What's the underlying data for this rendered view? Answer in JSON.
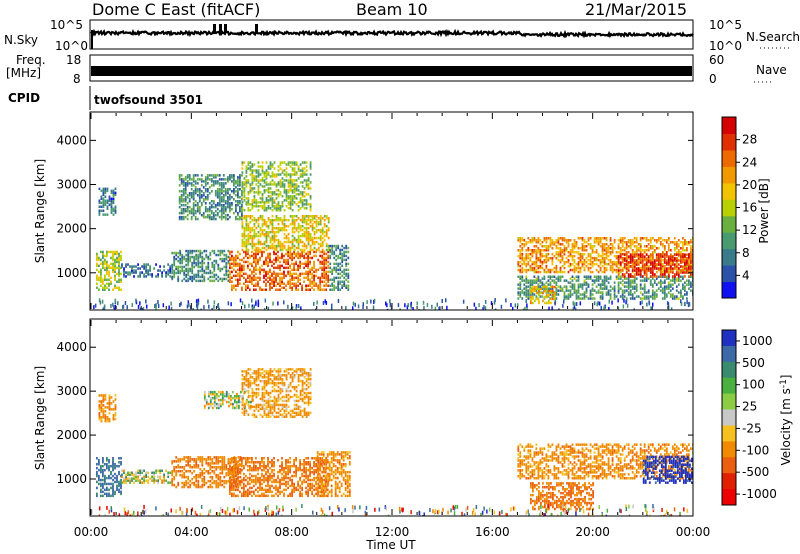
{
  "header": {
    "radar": "Dome C East (fitACF)",
    "beam": "Beam 10",
    "date": "21/Mar/2015"
  },
  "top_panels": {
    "nsky_label": "N.Sky",
    "nsky_ticks": [
      "10^5",
      "10^0"
    ],
    "nsearch_label": "N.Search",
    "nsearch_ticks": [
      "10^5",
      "10^0"
    ],
    "freq_label_1": "Freq.",
    "freq_label_2": "[MHz]",
    "freq_ticks": [
      "18",
      "8"
    ],
    "nave_label": "Nave",
    "nave_ticks": [
      "60",
      "0"
    ],
    "cpid_label": "CPID",
    "cpid_value": "twofsound 3501"
  },
  "colors": {
    "power": [
      "#1010f0",
      "#2a52a8",
      "#3a7a8a",
      "#4a9a70",
      "#6ab040",
      "#b8d000",
      "#f2c300",
      "#f09a00",
      "#ec6a00",
      "#e03000",
      "#d40000"
    ],
    "velocity": [
      "#2030c0",
      "#3c6aa6",
      "#3a8a70",
      "#4ab040",
      "#8ccc44",
      "#c8c8c8",
      "#f5c020",
      "#f08a00",
      "#ea6010",
      "#e02000",
      "#ee0000"
    ]
  },
  "chart_data": [
    {
      "type": "heatmap",
      "title": "",
      "xlabel": "Time UT",
      "ylabel": "Slant Range [km]",
      "x_ticks": [
        "00:00",
        "04:00",
        "08:00",
        "12:00",
        "16:00",
        "20:00",
        "00:00"
      ],
      "x_range_hours": [
        0,
        24
      ],
      "y_ticks": [
        "1000",
        "2000",
        "3000",
        "4000"
      ],
      "ylim": [
        180,
        4620
      ],
      "colorbar": {
        "label": "Power [dB]",
        "ticks": [
          "4",
          "8",
          "12",
          "16",
          "20",
          "24",
          "28"
        ],
        "range": [
          0,
          32
        ]
      },
      "regions": [
        {
          "t": [
            0.2,
            1.2
          ],
          "r": [
            600,
            1500
          ],
          "v": 15
        },
        {
          "t": [
            0.3,
            1.0
          ],
          "r": [
            2300,
            2900
          ],
          "v": 7
        },
        {
          "t": [
            1.2,
            3.2
          ],
          "r": [
            900,
            1200
          ],
          "v": 6
        },
        {
          "t": [
            3.2,
            5.5
          ],
          "r": [
            800,
            1500
          ],
          "v": 9
        },
        {
          "t": [
            3.5,
            6.0
          ],
          "r": [
            2200,
            3200
          ],
          "v": 9
        },
        {
          "t": [
            5.5,
            9.5
          ],
          "r": [
            600,
            1500
          ],
          "v": 25
        },
        {
          "t": [
            6.0,
            9.5
          ],
          "r": [
            1500,
            2300
          ],
          "v": 18
        },
        {
          "t": [
            6.0,
            8.8
          ],
          "r": [
            2400,
            3500
          ],
          "v": 14
        },
        {
          "t": [
            9.5,
            10.3
          ],
          "r": [
            600,
            1600
          ],
          "v": 9
        },
        {
          "t": [
            17.0,
            24.0
          ],
          "r": [
            1000,
            1800
          ],
          "v": 22
        },
        {
          "t": [
            17.0,
            24.0
          ],
          "r": [
            400,
            900
          ],
          "v": 10
        },
        {
          "t": [
            17.5,
            18.5
          ],
          "r": [
            300,
            700
          ],
          "v": 20
        },
        {
          "t": [
            21.0,
            24.0
          ],
          "r": [
            900,
            1400
          ],
          "v": 28
        }
      ]
    },
    {
      "type": "heatmap",
      "title": "",
      "xlabel": "Time UT",
      "ylabel": "Slant Range [km]",
      "x_ticks": [
        "00:00",
        "04:00",
        "08:00",
        "12:00",
        "16:00",
        "20:00",
        "00:00"
      ],
      "x_range_hours": [
        0,
        24
      ],
      "y_ticks": [
        "1000",
        "2000",
        "3000",
        "4000"
      ],
      "ylim": [
        180,
        4620
      ],
      "colorbar": {
        "label": "Velocity [m s^-1]",
        "ticks": [
          "1000",
          "500",
          "100",
          "25",
          "-25",
          "-100",
          "-500",
          "-1000"
        ],
        "range": [
          -1000,
          1000
        ]
      },
      "regions": [
        {
          "t": [
            0.2,
            1.2
          ],
          "r": [
            600,
            1500
          ],
          "v": 300
        },
        {
          "t": [
            0.3,
            1.0
          ],
          "r": [
            2300,
            2900
          ],
          "v": -200
        },
        {
          "t": [
            1.2,
            3.2
          ],
          "r": [
            900,
            1200
          ],
          "v": 0
        },
        {
          "t": [
            3.2,
            6.0
          ],
          "r": [
            800,
            1500
          ],
          "v": -250
        },
        {
          "t": [
            4.5,
            6.5
          ],
          "r": [
            2600,
            3000
          ],
          "v": 0
        },
        {
          "t": [
            5.5,
            9.5
          ],
          "r": [
            600,
            1500
          ],
          "v": -300
        },
        {
          "t": [
            6.0,
            8.8
          ],
          "r": [
            2400,
            3500
          ],
          "v": -150
        },
        {
          "t": [
            9.0,
            10.3
          ],
          "r": [
            600,
            1600
          ],
          "v": -200
        },
        {
          "t": [
            17.0,
            24.0
          ],
          "r": [
            1000,
            1800
          ],
          "v": -200
        },
        {
          "t": [
            22.0,
            24.0
          ],
          "r": [
            900,
            1500
          ],
          "v": 600
        },
        {
          "t": [
            17.5,
            20.0
          ],
          "r": [
            300,
            900
          ],
          "v": -300
        }
      ]
    }
  ]
}
